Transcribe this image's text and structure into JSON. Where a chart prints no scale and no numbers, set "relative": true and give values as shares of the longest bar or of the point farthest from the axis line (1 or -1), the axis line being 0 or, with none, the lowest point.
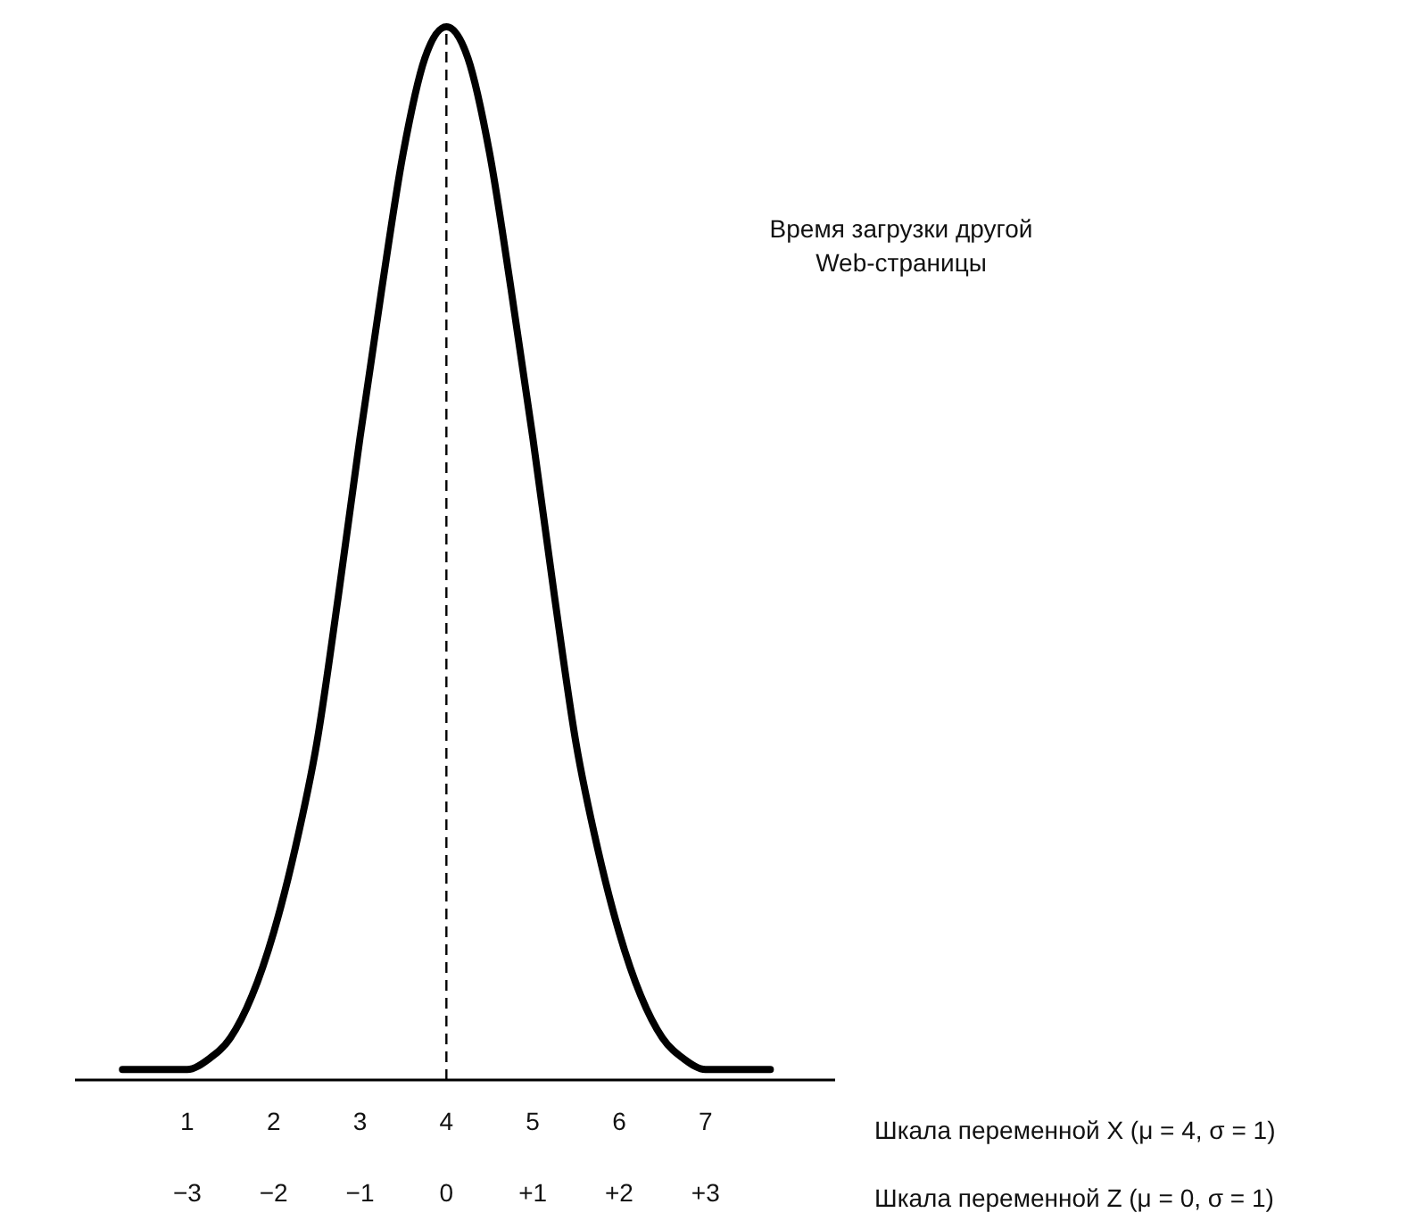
{
  "chart_data": {
    "type": "line",
    "relative": true,
    "x": [
      0.25,
      0.5,
      0.75,
      1,
      1.25,
      1.5,
      1.75,
      2,
      2.25,
      2.5,
      2.75,
      3,
      3.25,
      3.5,
      3.75,
      4,
      4.25,
      4.5,
      4.75,
      5,
      5.25,
      5.5,
      5.75,
      6,
      6.25,
      6.5,
      6.75,
      7,
      7.25,
      7.5,
      7.75
    ],
    "series": [
      {
        "color": "#000000",
        "values": [
          0.01,
          0.01,
          0.01,
          0.01,
          0.02,
          0.04,
          0.08,
          0.14,
          0.22,
          0.32,
          0.46,
          0.61,
          0.75,
          0.88,
          0.97,
          1,
          0.97,
          0.88,
          0.75,
          0.61,
          0.46,
          0.32,
          0.22,
          0.14,
          0.08,
          0.04,
          0.02,
          0.01,
          0.01,
          0.01,
          0.01
        ]
      }
    ],
    "xlim": [
      -0.3,
      8.5
    ],
    "xticks": [
      1,
      2,
      3,
      4,
      5,
      6,
      7
    ],
    "xlabel": "Шкала переменной X (μ = 4, σ = 1)",
    "x2lim": [
      -4.3,
      4.5
    ],
    "x2ticks": [
      {
        "value": -3,
        "label": "−3"
      },
      {
        "value": -2,
        "label": "−2"
      },
      {
        "value": -1,
        "label": "−1"
      },
      0,
      {
        "value": 1,
        "label": "+1"
      },
      {
        "value": 2,
        "label": "+2"
      },
      {
        "value": 3,
        "label": "+3"
      }
    ],
    "x2label": "Шкала переменной Z (μ = 0, σ = 1)",
    "ref_lines": [
      {
        "axis": "x",
        "value": 4,
        "line_style": "dashed",
        "color": "#000000"
      }
    ],
    "annotations": [
      "Время загрузки другой Web-страницы"
    ],
    "line_style": "solid",
    "marker": "none",
    "grid": false
  }
}
